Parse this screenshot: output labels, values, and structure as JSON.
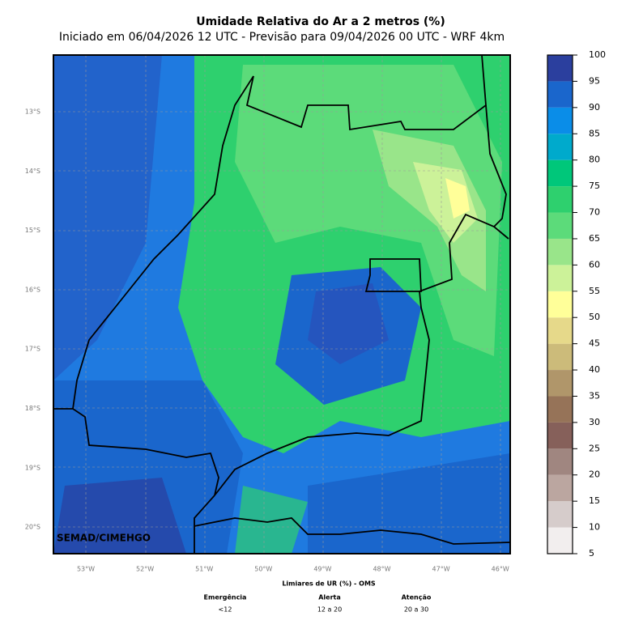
{
  "title": "Umidade Relativa do Ar a 2 metros (%)",
  "subtitle": "Iniciado em 06/04/2026 12 UTC - Previsão para 09/04/2026 00 UTC - WRF 4km",
  "map": {
    "lat_labels": [
      "13°S",
      "14°S",
      "15°S",
      "16°S",
      "17°S",
      "18°S",
      "19°S",
      "20°S"
    ],
    "lon_labels": [
      "53°W",
      "52°W",
      "51°W",
      "50°W",
      "49°W",
      "48°W",
      "47°W",
      "46°W"
    ],
    "credit": "SEMAD/CIMEHGO"
  },
  "colorbar": {
    "ticks": [
      5,
      10,
      15,
      20,
      25,
      30,
      35,
      40,
      45,
      50,
      55,
      60,
      65,
      70,
      75,
      80,
      85,
      90,
      95,
      100
    ],
    "colors": [
      "#f2eeee",
      "#d6cccb",
      "#bba6a0",
      "#a08680",
      "#86605a",
      "#967358",
      "#b0966a",
      "#ccbb7a",
      "#e6d98a",
      "#ffff99",
      "#ccf299",
      "#99e58a",
      "#5cdb7a",
      "#2ed06e",
      "#00c77a",
      "#00aacc",
      "#0a8de8",
      "#1a66cc",
      "#2b3f9e"
    ]
  },
  "legend": {
    "title": "Limiares de UR (%) - OMS",
    "items": [
      {
        "label": "Emergência",
        "range": "<12"
      },
      {
        "label": "Alerta",
        "range": "12 a 20"
      },
      {
        "label": "Atenção",
        "range": "20 a 30"
      }
    ]
  }
}
